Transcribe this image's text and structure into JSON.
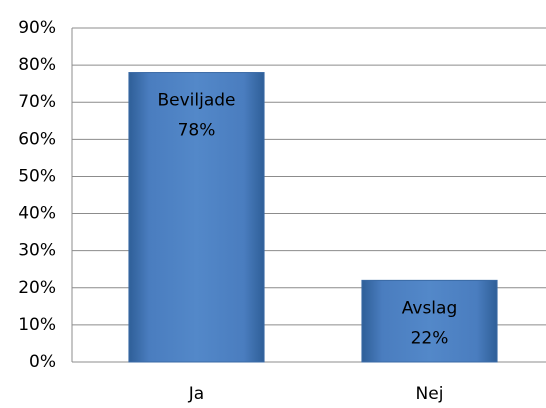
{
  "chart_data": {
    "type": "bar",
    "categories": [
      "Ja",
      "Nej"
    ],
    "values": [
      78,
      22
    ],
    "value_labels": [
      "78%",
      "22%"
    ],
    "label_names": [
      "Beviljade",
      "Avslag"
    ],
    "color": "#4f81bd",
    "ylim": [
      0,
      90
    ],
    "yticks": [
      {
        "value": 0,
        "label": "0%"
      },
      {
        "value": 10,
        "label": "10%"
      },
      {
        "value": 20,
        "label": "20%"
      },
      {
        "value": 30,
        "label": "30%"
      },
      {
        "value": 40,
        "label": "40%"
      },
      {
        "value": 50,
        "label": "50%"
      },
      {
        "value": 60,
        "label": "60%"
      },
      {
        "value": 70,
        "label": "70%"
      },
      {
        "value": 80,
        "label": "80%"
      },
      {
        "value": 90,
        "label": "90%"
      }
    ],
    "grid": true
  }
}
